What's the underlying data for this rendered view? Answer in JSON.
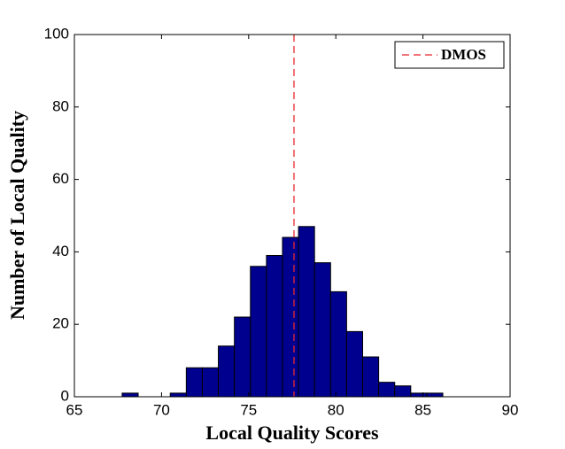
{
  "chart_data": {
    "type": "histogram",
    "xlabel": "Local Quality Scores",
    "ylabel": "Number of Local Quality",
    "bins": [
      67.74,
      68.66,
      69.58,
      70.5,
      71.42,
      72.34,
      73.26,
      74.18,
      75.1,
      76.02,
      76.94,
      77.86,
      78.78,
      79.7,
      80.62,
      81.54,
      82.46,
      83.38,
      84.3,
      85.22,
      86.14
    ],
    "counts": [
      1,
      0,
      0,
      1,
      8,
      8,
      14,
      22,
      36,
      39,
      44,
      47,
      37,
      29,
      18,
      11,
      4,
      3,
      1,
      1
    ],
    "color": "#00008f",
    "reference_line": {
      "name": "DMOS",
      "value": 77.6,
      "color": "#e8282e"
    },
    "xlim": [
      65,
      90
    ],
    "xticks": [
      65,
      70,
      75,
      80,
      85,
      90
    ],
    "ylim": [
      0,
      100
    ],
    "yticks": [
      0,
      20,
      40,
      60,
      80,
      100
    ],
    "legend": "upper right"
  }
}
